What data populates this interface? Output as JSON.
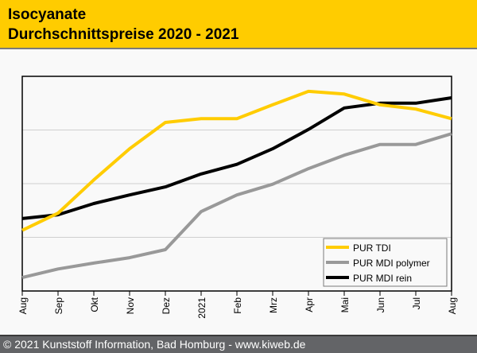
{
  "header": {
    "title_line1": "Isocyanate",
    "title_line2": "Durchschnittspreise 2020 - 2021"
  },
  "footer": {
    "text": "© 2021 Kunststoff Information, Bad Homburg - www.kiweb.de"
  },
  "colors": {
    "header_bg": "#ffcc00",
    "footer_bg": "#636467",
    "tdi": "#ffcc00",
    "mdi_polymer": "#999999",
    "mdi_rein": "#000000"
  },
  "chart_data": {
    "type": "line",
    "title": "Isocyanate Durchschnittspreise 2020 - 2021",
    "xlabel": "",
    "ylabel": "",
    "x": [
      "Aug",
      "Sep",
      "Okt",
      "Nov",
      "Dez",
      "2021",
      "Feb",
      "Mrz",
      "Apr",
      "Mai",
      "Jun",
      "Jul",
      "Aug"
    ],
    "ylim": [
      0,
      4
    ],
    "y_units_note": "no y-axis labels shown; values in relative gridline units",
    "grid": true,
    "legend_position": "bottom-right",
    "series": [
      {
        "name": "PUR TDI",
        "color": "#ffcc00",
        "values": [
          1.13,
          1.45,
          2.07,
          2.65,
          3.14,
          3.21,
          3.21,
          3.47,
          3.72,
          3.67,
          3.47,
          3.39,
          3.21
        ]
      },
      {
        "name": "PUR MDI polymer",
        "color": "#999999",
        "values": [
          0.25,
          0.41,
          0.52,
          0.62,
          0.77,
          1.48,
          1.79,
          1.99,
          2.28,
          2.53,
          2.73,
          2.73,
          2.93
        ]
      },
      {
        "name": "PUR MDI rein",
        "color": "#000000",
        "values": [
          1.35,
          1.42,
          1.63,
          1.79,
          1.94,
          2.18,
          2.36,
          2.65,
          3.01,
          3.41,
          3.5,
          3.5,
          3.6
        ]
      }
    ]
  }
}
